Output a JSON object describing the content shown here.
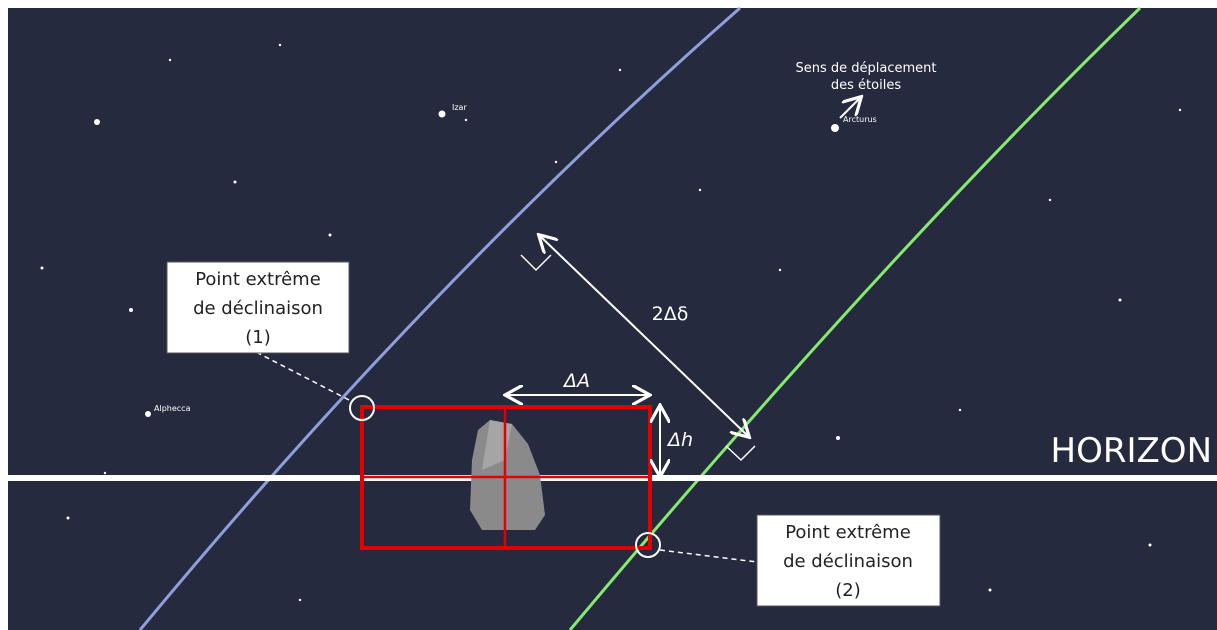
{
  "stars": {
    "izar": "Izar",
    "arcturus": "Arcturus",
    "alphecca": "Alphecca"
  },
  "motion": {
    "line1": "Sens de déplacement",
    "line2": "des étoiles"
  },
  "labels": {
    "delta_declination": "2Δδ",
    "delta_azimuth": "ΔA",
    "delta_height": "Δh",
    "horizon": "HORIZON"
  },
  "point1": {
    "line1": "Point extrême",
    "line2": "de déclinaison",
    "line3": "(1)"
  },
  "point2": {
    "line1": "Point extrême",
    "line2": "de déclinaison",
    "line3": "(2)"
  }
}
